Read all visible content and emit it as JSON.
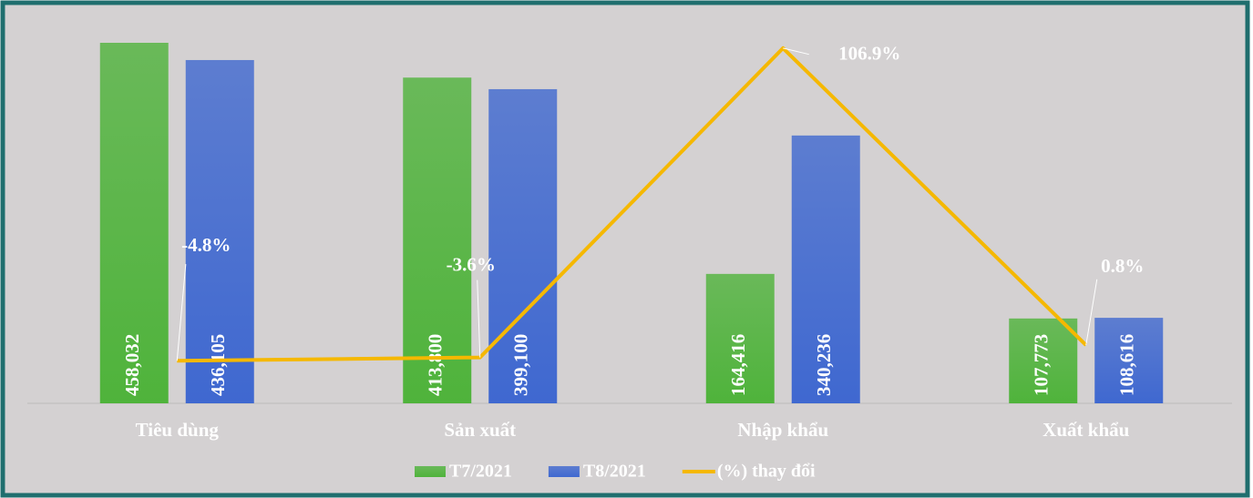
{
  "chart_data": {
    "type": "bar_line",
    "categories": [
      "Tiêu dùng",
      "Sản xuất",
      "Nhập khẩu",
      "Xuất khẩu"
    ],
    "series": [
      {
        "name": "T7/2021",
        "type": "bar",
        "color": "#4fb33b",
        "values": [
          458032,
          413800,
          164416,
          107773
        ],
        "value_labels": [
          "458,032",
          "413,800",
          "164,416",
          "107,773"
        ]
      },
      {
        "name": "T8/2021",
        "type": "bar",
        "color": "#3f68d0",
        "values": [
          436105,
          399100,
          340236,
          108616
        ],
        "value_labels": [
          "436,105",
          "399,100",
          "340,236",
          "108,616"
        ]
      },
      {
        "name": "(%) thay đổi",
        "type": "line",
        "axis": "y2",
        "color": "#f5b800",
        "values": [
          -4.8,
          -3.6,
          106.9,
          0.8
        ],
        "value_labels": [
          "-4.8%",
          "-3.6%",
          "106.9%",
          "0.8%"
        ]
      }
    ],
    "ylim": [
      0,
      480000
    ],
    "y2lim": [
      -20,
      115
    ],
    "legend": "bottom"
  }
}
